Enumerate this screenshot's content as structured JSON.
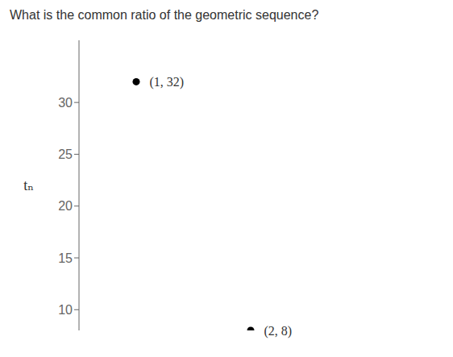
{
  "chart_data": {
    "type": "scatter",
    "title": "What is the common ratio of the geometric sequence?",
    "y_label": "tₙ",
    "x": [
      1,
      2
    ],
    "values": [
      32,
      8
    ],
    "value_labels": [
      "(1, 32)",
      "(2, 8)"
    ],
    "data_labels": true,
    "color": "#000000",
    "xlim": [
      0.5,
      3.5
    ],
    "ylim": [
      8,
      36
    ],
    "yticks": [
      10,
      15,
      20,
      25,
      30
    ],
    "tick_labels": "y",
    "grid": false
  }
}
